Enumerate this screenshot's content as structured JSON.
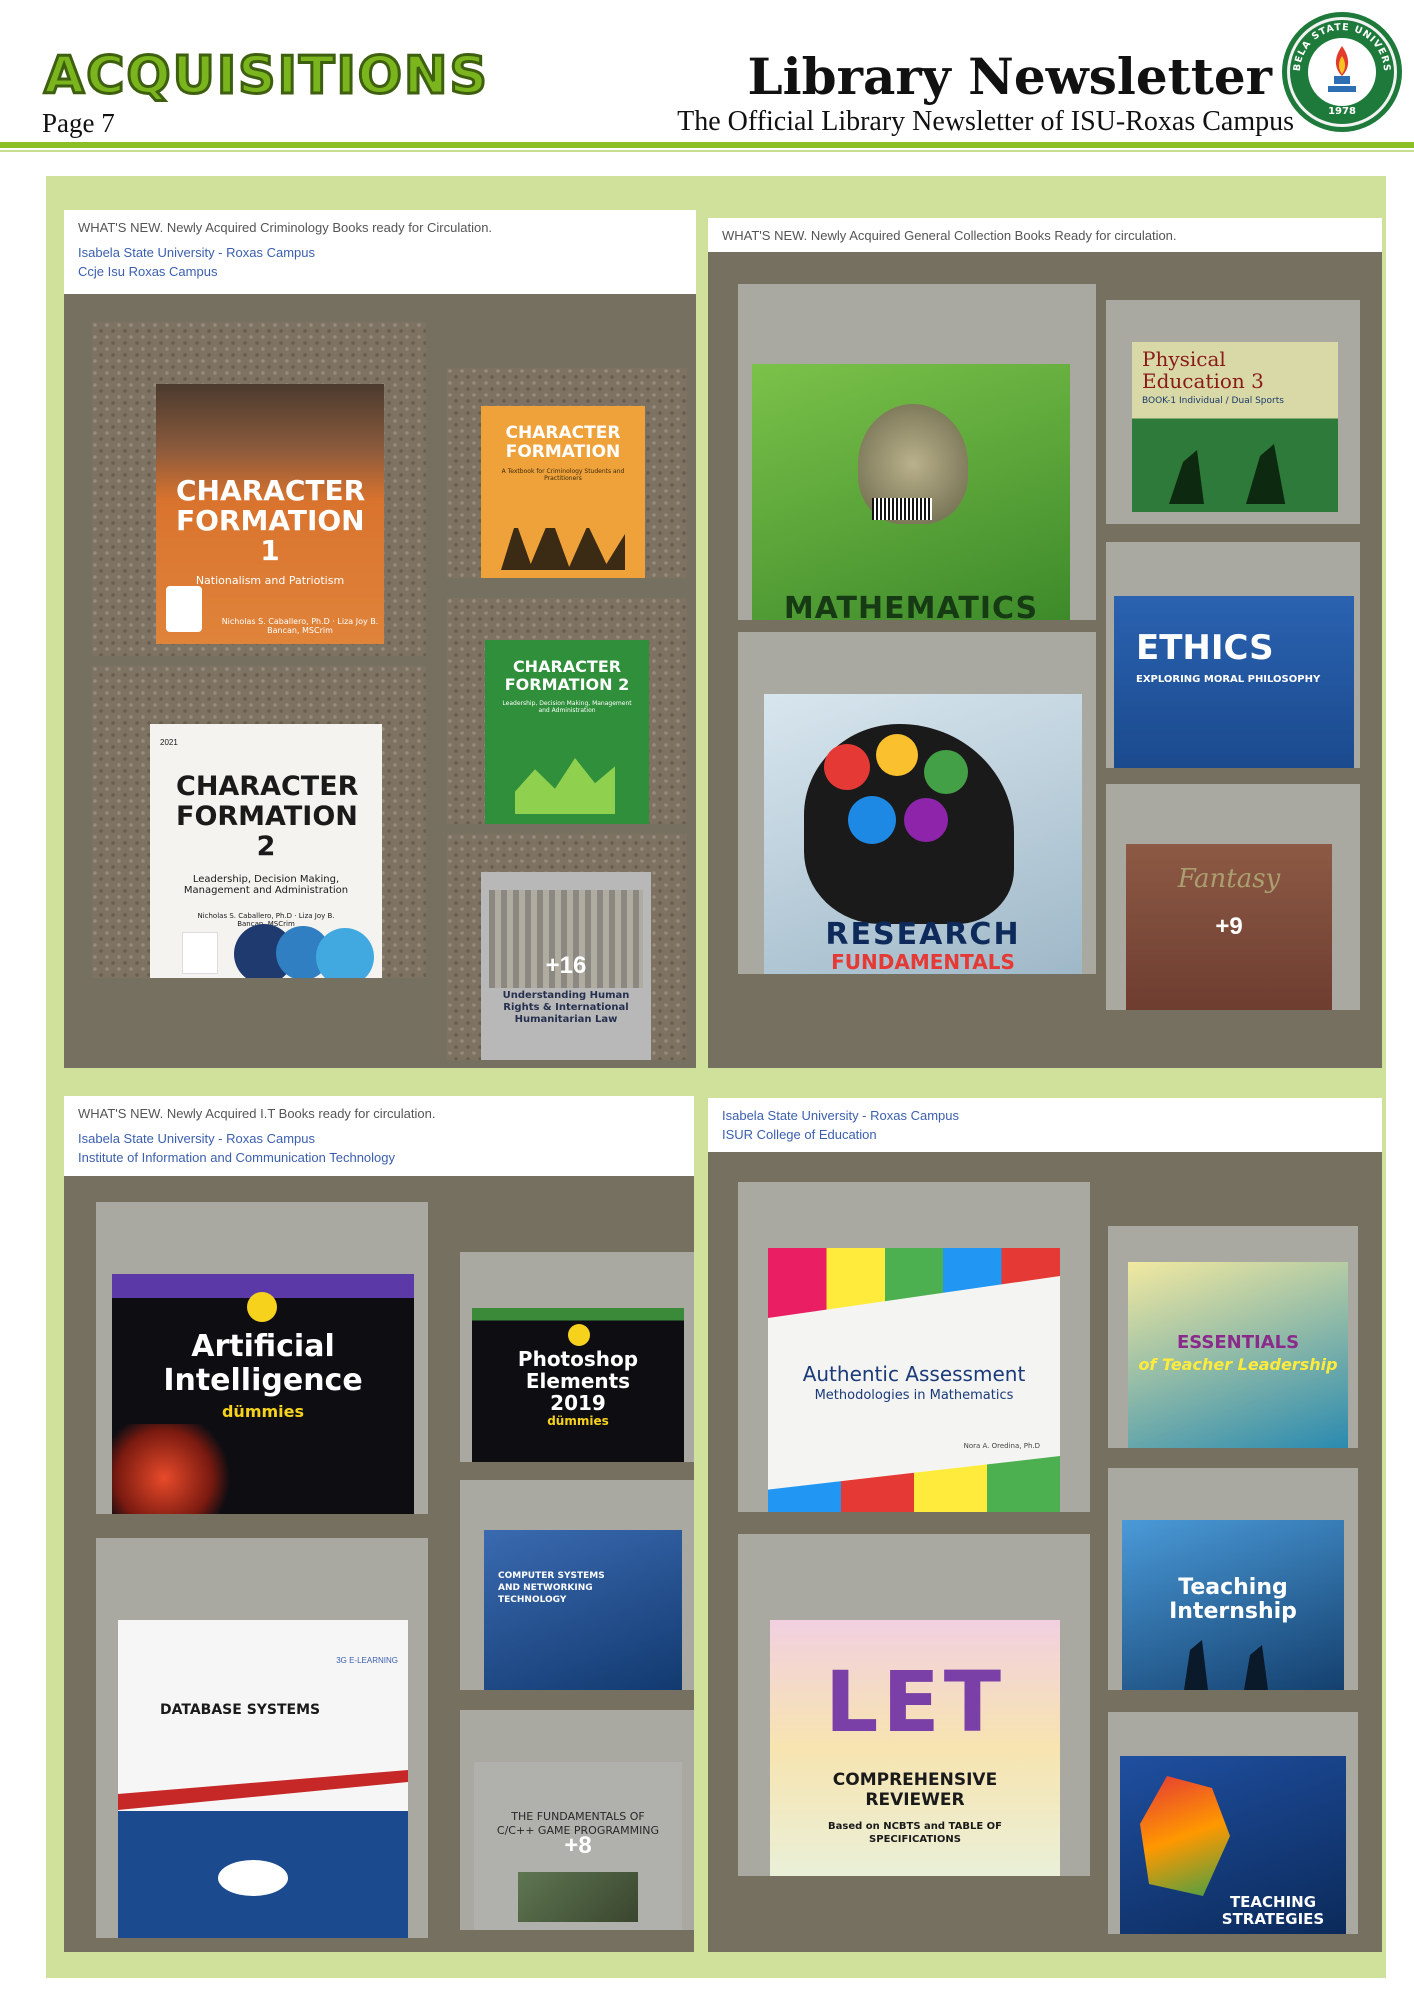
{
  "header": {
    "section": "ACQUISITIONS",
    "page": "Page 7",
    "title": "Library Newsletter",
    "subtitle": "The Official Library Newsletter of ISU-Roxas Campus",
    "seal_text_top": "ISABELA STATE UNIVERSITY",
    "seal_year": "1978"
  },
  "colors": {
    "accent_green": "#8cbf26",
    "frame_bg": "#cfe19a",
    "panel_bg": "#75705f",
    "link_blue": "#3b5fae"
  },
  "panels": {
    "crim": {
      "caption": "WHAT'S NEW. Newly Acquired Criminology Books ready for Circulation.",
      "link1": "Isabela State University - Roxas Campus",
      "link2": "Ccje Isu Roxas Campus",
      "b1": {
        "title": "CHARACTER FORMATION 1",
        "sub": "Nationalism and Patriotism",
        "authors": "Nicholas S. Caballero, Ph.D · Liza Joy B. Bancan, MSCrim"
      },
      "b2": {
        "title": "CHARACTER FORMATION",
        "sub": "A Textbook for Criminology Students and Practitioners"
      },
      "b3": {
        "title": "CHARACTER FORMATION 2",
        "sub": "Leadership, Decision Making, Management and Administration"
      },
      "b4": {
        "year": "2021",
        "title": "CHARACTER FORMATION 2",
        "sub": "Leadership, Decision Making, Management and Administration",
        "authors": "Nicholas S. Caballero, Ph.D · Liza Joy B. Bancan, MSCrim"
      },
      "b5": {
        "title": "Understanding Human Rights & International Humanitarian Law"
      },
      "more": "+16"
    },
    "gen": {
      "caption": "WHAT'S NEW. Newly Acquired General Collection Books Ready for circulation.",
      "b1": {
        "title": "MATHEMATICS"
      },
      "b2": {
        "title": "Physical Education 3",
        "sub": "BOOK-1 Individual / Dual Sports"
      },
      "b3": {
        "title": "ETHICS",
        "sub": "EXPLORING MORAL PHILOSOPHY"
      },
      "b4": {
        "title": "RESEARCH",
        "sub": "FUNDAMENTALS"
      },
      "b5": {
        "title": "Fantasy"
      },
      "more": "+9"
    },
    "it": {
      "caption": "WHAT'S NEW. Newly Acquired I.T Books ready for circulation.",
      "link1": "Isabela State University - Roxas Campus",
      "link2": "Institute of Information and Communication Technology",
      "b1": {
        "title": "Artificial Intelligence",
        "sub": "dümmies"
      },
      "b2": {
        "title": "Photoshop Elements 2019",
        "sub": "dümmies"
      },
      "b3": {
        "title": "DATABASE SYSTEMS",
        "brand": "3G E-LEARNING"
      },
      "b4": {
        "title": "COMPUTER SYSTEMS AND NETWORKING TECHNOLOGY"
      },
      "b5": {
        "title": "THE FUNDAMENTALS OF C/C++ GAME PROGRAMMING"
      },
      "more": "+8"
    },
    "educ": {
      "link1": "Isabela State University - Roxas Campus",
      "link2": "ISUR College of Education",
      "b1": {
        "title": "Authentic Assessment",
        "sub": "Methodologies in Mathematics",
        "author": "Nora A. Oredina, Ph.D"
      },
      "b2": {
        "title": "ESSENTIALS",
        "sub": "of Teacher Leadership"
      },
      "b3": {
        "title": "LET",
        "sub": "COMPREHENSIVE REVIEWER",
        "sub2": "Based on NCBTS and TABLE OF SPECIFICATIONS"
      },
      "b4": {
        "title": "Teaching Internship"
      },
      "b5": {
        "title": "TEACHING STRATEGIES"
      }
    }
  }
}
